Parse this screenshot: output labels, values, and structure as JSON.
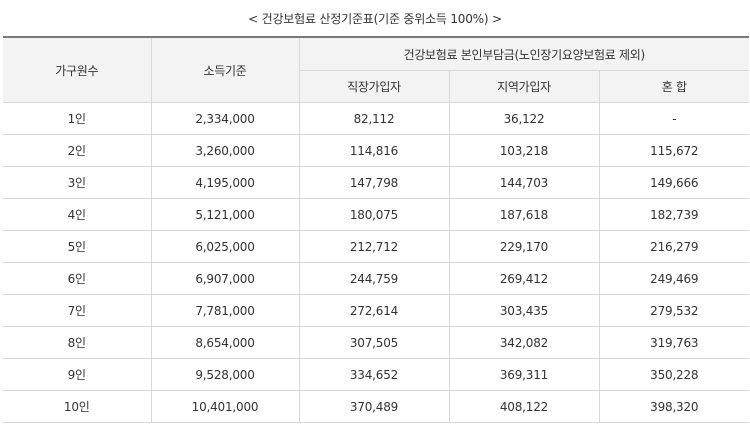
{
  "caption": "< 건강보험료 산정기준표(기준 중위소득 100%) >",
  "headers": {
    "household": "가구원수",
    "income": "소득기준",
    "premium_group": "건강보험료 본인부담금(노인장기요양보험료 제외)",
    "employee": "직장가입자",
    "regional": "지역가입자",
    "mixed": "혼 합"
  },
  "rows": [
    {
      "household": "1인",
      "income": "2,334,000",
      "employee": "82,112",
      "regional": "36,122",
      "mixed": "-"
    },
    {
      "household": "2인",
      "income": "3,260,000",
      "employee": "114,816",
      "regional": "103,218",
      "mixed": "115,672"
    },
    {
      "household": "3인",
      "income": "4,195,000",
      "employee": "147,798",
      "regional": "144,703",
      "mixed": "149,666"
    },
    {
      "household": "4인",
      "income": "5,121,000",
      "employee": "180,075",
      "regional": "187,618",
      "mixed": "182,739"
    },
    {
      "household": "5인",
      "income": "6,025,000",
      "employee": "212,712",
      "regional": "229,170",
      "mixed": "216,279"
    },
    {
      "household": "6인",
      "income": "6,907,000",
      "employee": "244,759",
      "regional": "269,412",
      "mixed": "249,469"
    },
    {
      "household": "7인",
      "income": "7,781,000",
      "employee": "272,614",
      "regional": "303,435",
      "mixed": "279,532"
    },
    {
      "household": "8인",
      "income": "8,654,000",
      "employee": "307,505",
      "regional": "342,082",
      "mixed": "319,763"
    },
    {
      "household": "9인",
      "income": "9,528,000",
      "employee": "334,652",
      "regional": "369,311",
      "mixed": "350,228"
    },
    {
      "household": "10인",
      "income": "10,401,000",
      "employee": "370,489",
      "regional": "408,122",
      "mixed": "398,320"
    }
  ]
}
